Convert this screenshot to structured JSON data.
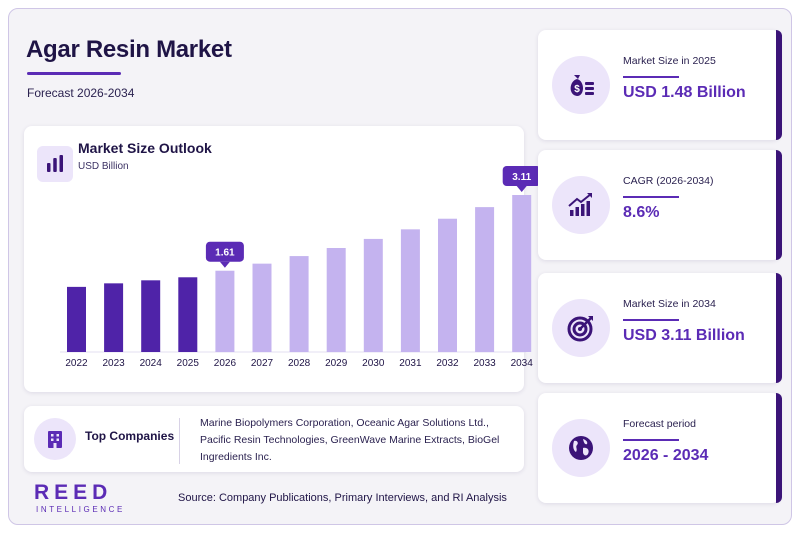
{
  "header": {
    "title": "Agar Resin Market",
    "subtitle": "Forecast 2026-2034"
  },
  "chart_card": {
    "title": "Market Size Outlook",
    "unit": "USD Billion",
    "icon": "bar-chart-icon"
  },
  "chart_data": {
    "type": "bar",
    "title": "Market Size Outlook",
    "ylabel": "USD Billion",
    "categories": [
      "2022",
      "2023",
      "2024",
      "2025",
      "2026",
      "2027",
      "2028",
      "2029",
      "2030",
      "2031",
      "2032",
      "2033",
      "2034"
    ],
    "values": [
      1.29,
      1.36,
      1.42,
      1.48,
      1.61,
      1.75,
      1.9,
      2.06,
      2.24,
      2.43,
      2.64,
      2.87,
      3.11
    ],
    "annotations": [
      {
        "category": "2026",
        "label": "1.61"
      },
      {
        "category": "2034",
        "label": "3.11"
      }
    ],
    "historical_color": "#4f23a8",
    "forecast_color": "#c4b3ef",
    "callout_color": "#5b2bb5",
    "ylim": [
      0,
      3.11
    ],
    "grid": false,
    "legend": "none"
  },
  "companies": {
    "label": "Top Companies",
    "text": "Marine Biopolymers Corporation, Oceanic Agar Solutions Ltd., Pacific Resin Technologies, GreenWave Marine Extracts, BioGel Ingredients Inc.",
    "icon": "building-icon"
  },
  "footer": {
    "logo_main": "REED",
    "logo_sub": "INTELLIGENCE",
    "source": "Source: Company Publications, Primary Interviews, and RI Analysis"
  },
  "stats": [
    {
      "label": "Market Size in 2025",
      "value": "USD 1.48 Billion",
      "icon": "money-bag-icon"
    },
    {
      "label": "CAGR (2026-2034)",
      "value": "8.6%",
      "icon": "growth-chart-icon"
    },
    {
      "label": "Market Size in 2034",
      "value": "USD 3.11 Billion",
      "icon": "target-icon"
    },
    {
      "label": "Forecast period",
      "value": "2026 - 2034",
      "icon": "globe-icon"
    }
  ],
  "colors": {
    "accent": "#5b2bb5",
    "dark": "#1f1446",
    "icon_bg": "#ece5fa"
  }
}
